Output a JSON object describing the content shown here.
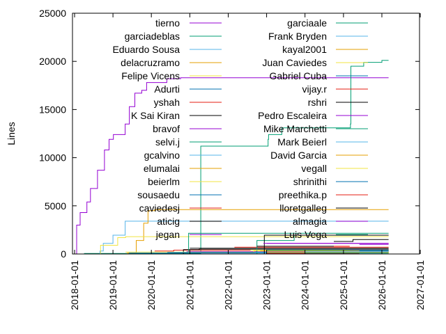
{
  "chart_data": {
    "type": "line",
    "style": "steps",
    "title": "",
    "xlabel": "",
    "ylabel": "Lines",
    "xlim": [
      "2017-12-12",
      "2026-12-25"
    ],
    "ylim": [
      0,
      25000
    ],
    "x_ticks": [
      "2018-01-01",
      "2019-01-01",
      "2020-01-01",
      "2021-01-01",
      "2022-01-01",
      "2023-01-01",
      "2024-01-01",
      "2025-01-01",
      "2026-01-01",
      "2027-01-01"
    ],
    "y_ticks": [
      0,
      5000,
      10000,
      15000,
      20000,
      25000
    ],
    "grid": false,
    "legend": "top-center, two columns",
    "series": [
      {
        "name": "tierno",
        "color": "#9400d3",
        "points": [
          [
            "2018-01-20",
            0
          ],
          [
            "2018-01-21",
            3000
          ],
          [
            "2018-02-23",
            4300
          ],
          [
            "2018-04-28",
            5400
          ],
          [
            "2018-06-01",
            6800
          ],
          [
            "2018-08-07",
            8700
          ],
          [
            "2018-10-12",
            10800
          ],
          [
            "2018-11-25",
            11900
          ],
          [
            "2019-01-05",
            12400
          ],
          [
            "2019-04-27",
            13500
          ],
          [
            "2019-06-06",
            15300
          ],
          [
            "2019-07-28",
            16700
          ],
          [
            "2019-10-02",
            17000
          ],
          [
            "2019-11-17",
            17800
          ],
          [
            "2020-05-27",
            18200
          ],
          [
            "2020-10-05",
            18300
          ],
          [
            "2026-03-06",
            18300
          ]
        ]
      },
      {
        "name": "garciadeblas",
        "color": "#009e73",
        "points": [
          [
            "2018-04-01",
            50
          ],
          [
            "2021-04-15",
            11200
          ],
          [
            "2023-01-15",
            11900
          ],
          [
            "2023-01-20",
            12400
          ],
          [
            "2023-05-25",
            13100
          ],
          [
            "2025-03-08",
            13500
          ],
          [
            "2025-03-12",
            19500
          ],
          [
            "2025-07-12",
            19900
          ],
          [
            "2026-01-01",
            20100
          ],
          [
            "2026-03-06",
            20100
          ]
        ]
      },
      {
        "name": "Eduardo Sousa",
        "color": "#56b4e9",
        "points": [
          [
            "2018-07-15",
            0
          ],
          [
            "2018-08-30",
            300
          ],
          [
            "2018-10-01",
            1100
          ],
          [
            "2019-01-01",
            1950
          ],
          [
            "2019-04-27",
            3400
          ],
          [
            "2026-03-06",
            3400
          ]
        ]
      },
      {
        "name": "delacruzramo",
        "color": "#e69f00",
        "points": [
          [
            "2019-04-27",
            0
          ],
          [
            "2019-05-20",
            100
          ],
          [
            "2019-08-10",
            1400
          ],
          [
            "2019-10-20",
            3200
          ],
          [
            "2019-11-30",
            4500
          ],
          [
            "2020-02-01",
            4600
          ],
          [
            "2026-03-06",
            4600
          ]
        ]
      },
      {
        "name": "Felipe Vicens",
        "color": "#f0e442",
        "points": [
          [
            "2018-09-01",
            0
          ],
          [
            "2018-09-05",
            900
          ],
          [
            "2019-02-15",
            1700
          ],
          [
            "2019-05-01",
            1800
          ],
          [
            "2026-03-06",
            1800
          ]
        ]
      },
      {
        "name": "Adurti",
        "color": "#0072b2",
        "points": [
          [
            "2019-06-01",
            100
          ],
          [
            "2026-03-06",
            100
          ]
        ]
      },
      {
        "name": "yshah",
        "color": "#e51e10",
        "points": [
          [
            "2020-02-01",
            300
          ],
          [
            "2020-08-01",
            400
          ],
          [
            "2026-03-06",
            400
          ]
        ]
      },
      {
        "name": "K Sai Kiran",
        "color": "#000000",
        "points": [
          [
            "2020-10-01",
            0
          ],
          [
            "2020-11-01",
            450
          ],
          [
            "2021-04-01",
            500
          ],
          [
            "2026-03-06",
            500
          ]
        ]
      },
      {
        "name": "bravof",
        "color": "#9400d3",
        "points": [
          [
            "2020-12-01",
            250
          ],
          [
            "2026-03-06",
            250
          ]
        ]
      },
      {
        "name": "selvi.j",
        "color": "#009e73",
        "points": [
          [
            "2020-12-15",
            0
          ],
          [
            "2020-12-20",
            2150
          ],
          [
            "2026-03-06",
            2150
          ]
        ]
      },
      {
        "name": "gcalvino",
        "color": "#56b4e9",
        "points": [
          [
            "2021-06-01",
            150
          ],
          [
            "2026-03-06",
            150
          ]
        ]
      },
      {
        "name": "elumalai",
        "color": "#e69f00",
        "points": [
          [
            "2024-04-01",
            200
          ],
          [
            "2026-03-06",
            250
          ]
        ]
      },
      {
        "name": "beierlm",
        "color": "#f0e442",
        "points": [
          [
            "2019-05-01",
            200
          ],
          [
            "2022-09-01",
            300
          ],
          [
            "2026-03-06",
            300
          ]
        ]
      },
      {
        "name": "sousaedu",
        "color": "#0072b2",
        "points": [
          [
            "2020-06-01",
            150
          ],
          [
            "2026-03-06",
            150
          ]
        ]
      },
      {
        "name": "caviedesj",
        "color": "#e51e10",
        "points": [
          [
            "2022-03-01",
            700
          ],
          [
            "2026-03-06",
            700
          ]
        ]
      },
      {
        "name": "aticig",
        "color": "#000000",
        "points": [
          [
            "2021-01-01",
            600
          ],
          [
            "2026-03-06",
            600
          ]
        ]
      },
      {
        "name": "jegan",
        "color": "#9400d3",
        "points": [
          [
            "2023-01-01",
            1100
          ],
          [
            "2026-03-06",
            1100
          ]
        ]
      },
      {
        "name": "garciaale",
        "color": "#009e73",
        "points": [
          [
            "2022-09-15",
            0
          ],
          [
            "2022-10-01",
            1400
          ],
          [
            "2023-09-01",
            1400
          ],
          [
            "2023-09-20",
            1950
          ],
          [
            "2026-03-06",
            1950
          ]
        ]
      },
      {
        "name": "Frank Bryden",
        "color": "#56b4e9",
        "points": [
          [
            "2022-10-01",
            200
          ],
          [
            "2026-03-06",
            200
          ]
        ]
      },
      {
        "name": "kayal2001",
        "color": "#e69f00",
        "points": [
          [
            "2022-11-01",
            300
          ],
          [
            "2026-03-06",
            300
          ]
        ]
      },
      {
        "name": "Juan Caviedes",
        "color": "#f0e442",
        "points": [
          [
            "2022-08-01",
            400
          ],
          [
            "2026-03-06",
            400
          ]
        ]
      },
      {
        "name": "Gabriel Cuba",
        "color": "#0072b2",
        "points": [
          [
            "2025-06-01",
            350
          ],
          [
            "2026-03-06",
            350
          ]
        ]
      },
      {
        "name": "vijay.r",
        "color": "#e51e10",
        "points": [
          [
            "2024-10-01",
            800
          ],
          [
            "2025-03-01",
            800
          ]
        ]
      },
      {
        "name": "rshri",
        "color": "#000000",
        "points": [
          [
            "2022-10-01",
            800
          ],
          [
            "2024-10-01",
            800
          ]
        ]
      },
      {
        "name": "Pedro Escaleira",
        "color": "#9400d3",
        "points": [
          [
            "2025-06-01",
            1000
          ],
          [
            "2026-03-06",
            1000
          ]
        ]
      },
      {
        "name": "Mike Marchetti",
        "color": "#009e73",
        "points": [
          [
            "2023-01-01",
            400
          ],
          [
            "2026-03-06",
            400
          ]
        ]
      },
      {
        "name": "Mark Beierl",
        "color": "#56b4e9",
        "points": [
          [
            "2024-01-01",
            250
          ],
          [
            "2026-03-06",
            250
          ]
        ]
      },
      {
        "name": "David Garcia",
        "color": "#e69f00",
        "points": [
          [
            "2023-01-01",
            150
          ],
          [
            "2026-03-06",
            150
          ]
        ]
      },
      {
        "name": "vegall",
        "color": "#f0e442",
        "points": [
          [
            "2026-01-01",
            100
          ],
          [
            "2026-03-06",
            200
          ]
        ]
      },
      {
        "name": "shrinithi",
        "color": "#0072b2",
        "points": [
          [
            "2025-03-01",
            400
          ],
          [
            "2026-03-06",
            400
          ]
        ]
      },
      {
        "name": "preethika.p",
        "color": "#e51e10",
        "points": [
          [
            "2023-01-01",
            50
          ],
          [
            "2025-06-01",
            50
          ]
        ]
      },
      {
        "name": "lloretgalleg",
        "color": "#000000",
        "points": [
          [
            "2022-12-01",
            0
          ],
          [
            "2022-12-10",
            1950
          ],
          [
            "2026-03-06",
            1950
          ],
          [
            "2024-10-01",
            1300
          ],
          [
            "2025-04-01",
            1500
          ],
          [
            "2026-03-06",
            1500
          ]
        ]
      },
      {
        "name": "almagia",
        "color": "#9400d3",
        "points": [
          [
            "2022-12-01",
            1100
          ],
          [
            "2026-03-06",
            1100
          ]
        ]
      },
      {
        "name": "Luis Vega",
        "color": "#009e73",
        "points": [
          [
            "2024-01-01",
            100
          ],
          [
            "2026-03-06",
            100
          ]
        ]
      }
    ]
  }
}
